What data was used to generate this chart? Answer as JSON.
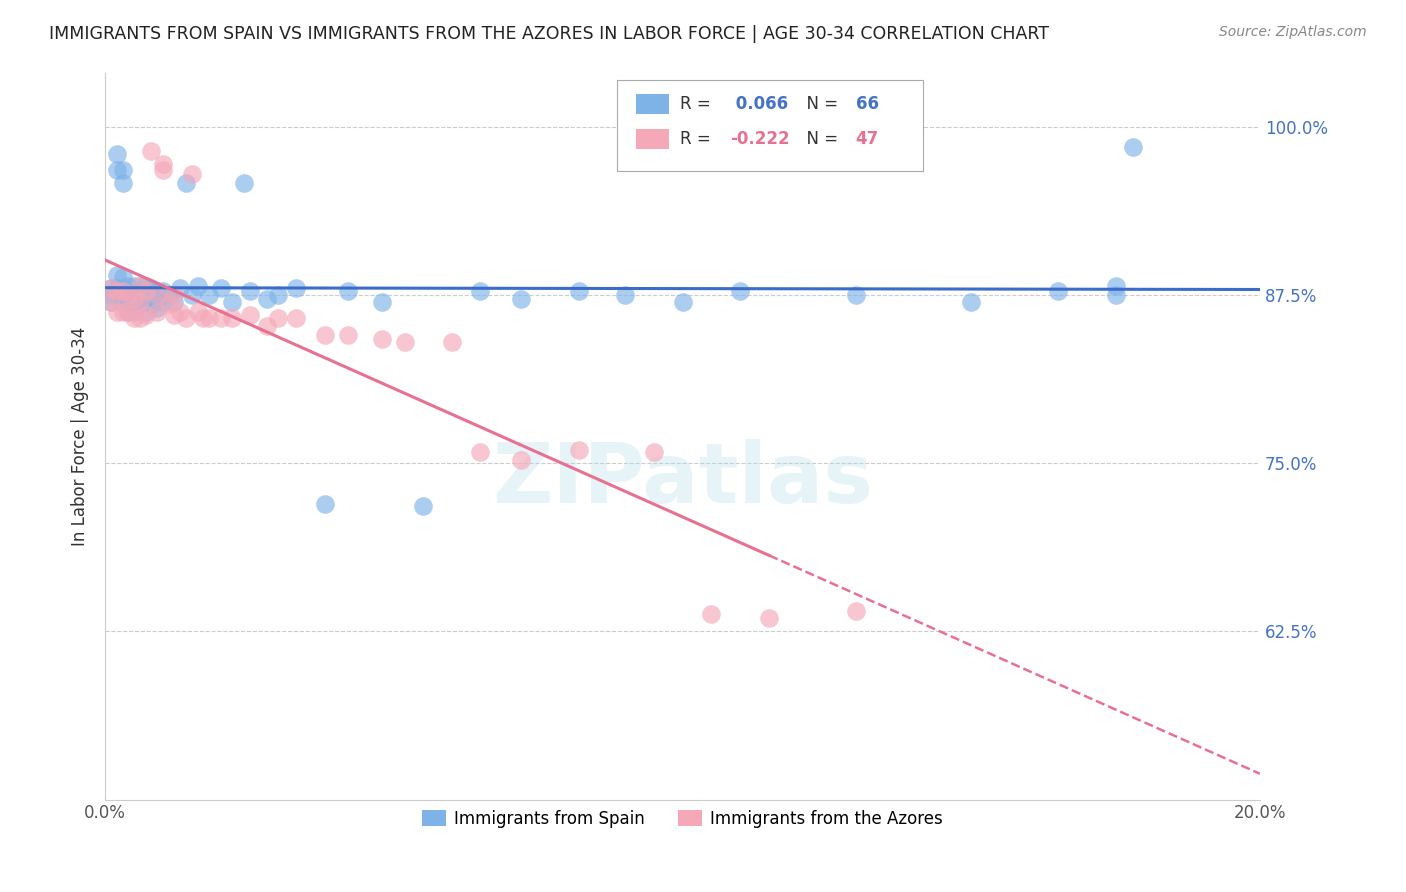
{
  "title": "IMMIGRANTS FROM SPAIN VS IMMIGRANTS FROM THE AZORES IN LABOR FORCE | AGE 30-34 CORRELATION CHART",
  "source": "Source: ZipAtlas.com",
  "ylabel": "In Labor Force | Age 30-34",
  "legend_spain": "Immigrants from Spain",
  "legend_azores": "Immigrants from the Azores",
  "r_spain": 0.066,
  "n_spain": 66,
  "r_azores": -0.222,
  "n_azores": 47,
  "xlim": [
    0.0,
    0.2
  ],
  "ylim": [
    0.5,
    1.04
  ],
  "yticks": [
    0.625,
    0.75,
    0.875,
    1.0
  ],
  "ytick_labels": [
    "62.5%",
    "75.0%",
    "87.5%",
    "100.0%"
  ],
  "xticks": [
    0.0,
    0.04,
    0.08,
    0.12,
    0.16,
    0.2
  ],
  "xtick_labels": [
    "0.0%",
    "",
    "",
    "",
    "",
    "20.0%"
  ],
  "color_spain": "#7EB3E8",
  "color_azores": "#F4A8B8",
  "line_color_spain": "#3a6cc9",
  "line_color_azores": "#e87090",
  "background_color": "#ffffff",
  "grid_color": "#cccccc",
  "watermark": "ZIPatlas",
  "spain_x": [
    0.001,
    0.001,
    0.001,
    0.002,
    0.002,
    0.002,
    0.002,
    0.003,
    0.003,
    0.003,
    0.003,
    0.003,
    0.004,
    0.004,
    0.004,
    0.004,
    0.005,
    0.005,
    0.005,
    0.005,
    0.005,
    0.006,
    0.006,
    0.006,
    0.007,
    0.007,
    0.007,
    0.007,
    0.008,
    0.008,
    0.008,
    0.009,
    0.009,
    0.009,
    0.01,
    0.01,
    0.011,
    0.012,
    0.013,
    0.014,
    0.015,
    0.016,
    0.018,
    0.02,
    0.022,
    0.024,
    0.025,
    0.028,
    0.03,
    0.033,
    0.038,
    0.042,
    0.048,
    0.055,
    0.065,
    0.072,
    0.082,
    0.09,
    0.1,
    0.11,
    0.13,
    0.15,
    0.165,
    0.175,
    0.175,
    0.178
  ],
  "spain_y": [
    0.88,
    0.875,
    0.87,
    0.98,
    0.968,
    0.89,
    0.88,
    0.968,
    0.958,
    0.888,
    0.88,
    0.87,
    0.882,
    0.875,
    0.87,
    0.862,
    0.882,
    0.878,
    0.872,
    0.868,
    0.862,
    0.882,
    0.875,
    0.87,
    0.882,
    0.878,
    0.87,
    0.862,
    0.88,
    0.875,
    0.868,
    0.878,
    0.872,
    0.865,
    0.878,
    0.87,
    0.875,
    0.87,
    0.88,
    0.958,
    0.875,
    0.882,
    0.875,
    0.88,
    0.87,
    0.958,
    0.878,
    0.872,
    0.875,
    0.88,
    0.72,
    0.878,
    0.87,
    0.718,
    0.878,
    0.872,
    0.878,
    0.875,
    0.87,
    0.878,
    0.875,
    0.87,
    0.878,
    0.882,
    0.875,
    0.985
  ],
  "azores_x": [
    0.001,
    0.001,
    0.002,
    0.002,
    0.003,
    0.003,
    0.004,
    0.004,
    0.005,
    0.005,
    0.006,
    0.006,
    0.006,
    0.007,
    0.007,
    0.008,
    0.009,
    0.009,
    0.01,
    0.01,
    0.011,
    0.012,
    0.012,
    0.013,
    0.014,
    0.015,
    0.016,
    0.017,
    0.018,
    0.02,
    0.022,
    0.025,
    0.028,
    0.03,
    0.033,
    0.038,
    0.042,
    0.048,
    0.052,
    0.06,
    0.065,
    0.072,
    0.082,
    0.095,
    0.105,
    0.115,
    0.13
  ],
  "azores_y": [
    0.88,
    0.87,
    0.878,
    0.862,
    0.878,
    0.862,
    0.875,
    0.862,
    0.872,
    0.858,
    0.882,
    0.87,
    0.858,
    0.878,
    0.86,
    0.982,
    0.875,
    0.862,
    0.972,
    0.968,
    0.868,
    0.875,
    0.86,
    0.862,
    0.858,
    0.965,
    0.862,
    0.858,
    0.858,
    0.858,
    0.858,
    0.86,
    0.852,
    0.858,
    0.858,
    0.845,
    0.845,
    0.842,
    0.84,
    0.84,
    0.758,
    0.752,
    0.76,
    0.758,
    0.638,
    0.635,
    0.64
  ]
}
